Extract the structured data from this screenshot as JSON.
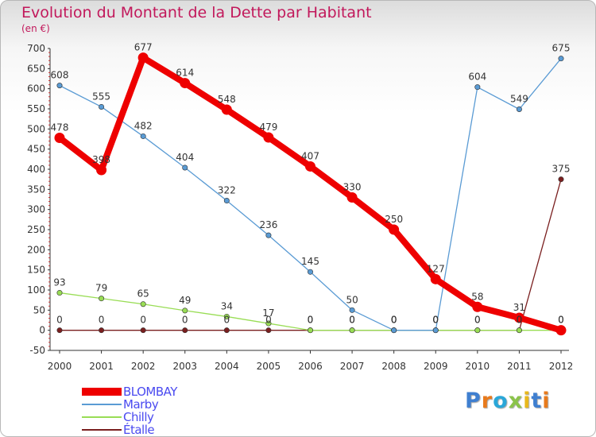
{
  "header": {
    "title": "Evolution du Montant de la Dette par Habitant",
    "unit": "(en €)"
  },
  "logo": {
    "letters": [
      "P",
      "r",
      "o",
      "x",
      "i",
      "t",
      "i"
    ],
    "colors": [
      "#3f7fd0",
      "#e87a1c",
      "#2aa7d8",
      "#8bc34a",
      "#e8b81c",
      "#3f7fd0",
      "#e87a1c"
    ]
  },
  "colors": {
    "title": "#c2185b",
    "legend_text": "#4a4af0",
    "axis": "#333333"
  },
  "chart_data": {
    "type": "line",
    "x": [
      "2000",
      "2001",
      "2002",
      "2003",
      "2004",
      "2005",
      "2006",
      "2007",
      "2008",
      "2009",
      "2010",
      "2011",
      "2012"
    ],
    "ylim": [
      -50,
      700
    ],
    "yticks": [
      "-50",
      "0",
      "50",
      "100",
      "150",
      "200",
      "250",
      "300",
      "350",
      "400",
      "450",
      "500",
      "550",
      "600",
      "650",
      "700"
    ],
    "grid": false,
    "legend_position": "bottom-left",
    "series": [
      {
        "name": "BLOMBAY",
        "color": "#ee0000",
        "width": 8,
        "values": [
          478,
          398,
          677,
          614,
          548,
          479,
          407,
          330,
          250,
          127,
          58,
          31,
          0
        ],
        "labels": [
          "478",
          "398",
          "677",
          "614",
          "548",
          "479",
          "407",
          "330",
          "250",
          "127",
          "58",
          "31",
          "0"
        ]
      },
      {
        "name": "Marby",
        "color": "#5a9bd4",
        "width": 1.3,
        "values": [
          608,
          555,
          482,
          404,
          322,
          236,
          145,
          50,
          0,
          0,
          604,
          549,
          675
        ],
        "labels": [
          "608",
          "555",
          "482",
          "404",
          "322",
          "236",
          "145",
          "50",
          "0",
          "0",
          "604",
          "549",
          "675"
        ]
      },
      {
        "name": "Chilly",
        "color": "#99dd55",
        "width": 1.3,
        "values": [
          93,
          79,
          65,
          49,
          34,
          17,
          0,
          0,
          0,
          0,
          0,
          0,
          0
        ],
        "labels": [
          "93",
          "79",
          "65",
          "49",
          "34",
          "17",
          "0",
          "0",
          "0",
          "0",
          "0",
          "0",
          "0"
        ]
      },
      {
        "name": "Étalle",
        "color": "#7a1f1f",
        "width": 1.3,
        "values": [
          0,
          0,
          0,
          0,
          0,
          0,
          0,
          0,
          0,
          0,
          0,
          0,
          375
        ],
        "labels": [
          "0",
          "0",
          "0",
          "0",
          "0",
          "0",
          "0",
          "0",
          "0",
          "0",
          "0",
          "0",
          "375"
        ]
      }
    ]
  }
}
